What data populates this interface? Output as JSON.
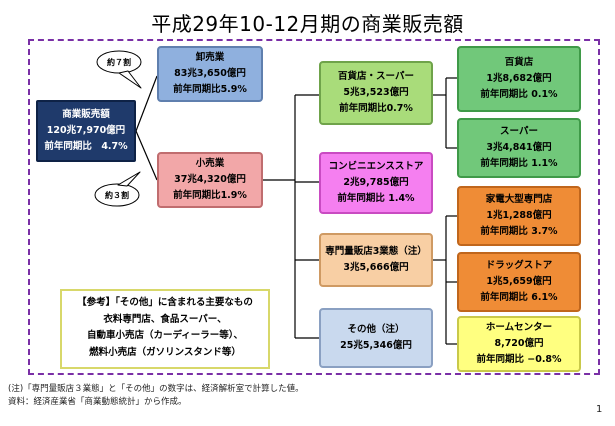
{
  "title": "平成29年10-12月期の商業販売額",
  "total": {
    "label": "商業販売額",
    "value": "120兆7,970億円",
    "yoy": "前年同期比　4.7%"
  },
  "bubbles": {
    "upper": "約７割",
    "lower": "約３割"
  },
  "wholesale": {
    "label": "卸売業",
    "value": "83兆3,650億円",
    "yoy": "前年同期比5.9%"
  },
  "retail": {
    "label": "小売業",
    "value": "37兆4,320億円",
    "yoy": "前年同期比1.9%"
  },
  "dept_super": {
    "label": "百貨店・スーパー",
    "value": "5兆3,523億円",
    "yoy": "前年同期比0.7%"
  },
  "convenience": {
    "label": "コンビニエンスストア",
    "value": "2兆9,785億円",
    "yoy": "前年同期比 1.4%"
  },
  "specialty": {
    "label": "専門量販店3業態（注）",
    "value": "3兆5,666億円"
  },
  "other": {
    "label": "その他（注）",
    "value": "25兆5,346億円"
  },
  "department_store": {
    "label": "百貨店",
    "value": "1兆8,682億円",
    "yoy": "前年同期比 0.1%"
  },
  "supermarket": {
    "label": "スーパー",
    "value": "3兆4,841億円",
    "yoy": "前年同期比 1.1%"
  },
  "electronics": {
    "label": "家電大型専門店",
    "value": "1兆1,288億円",
    "yoy": "前年同期比 3.7%"
  },
  "drugstore": {
    "label": "ドラッグストア",
    "value": "1兆5,659億円",
    "yoy": "前年同期比 6.1%"
  },
  "home_center": {
    "label": "ホームセンター",
    "value": "8,720億円",
    "yoy": "前年同期比 −0.8%"
  },
  "reference": {
    "line1": "【参考】「その他」に含まれる主要なもの",
    "line2": "衣料専門店、食品スーパー、",
    "line3": "自動車小売店（カーディーラー等）、",
    "line4": "燃料小売店（ガソリンスタンド等）"
  },
  "notes": {
    "note1": "(注)「専門量販店３業態」と「その他」の数字は、経済解析室で計算した値。",
    "note2": "資料：経済産業省「商業動態統計」から作成。"
  },
  "page_number": "1"
}
